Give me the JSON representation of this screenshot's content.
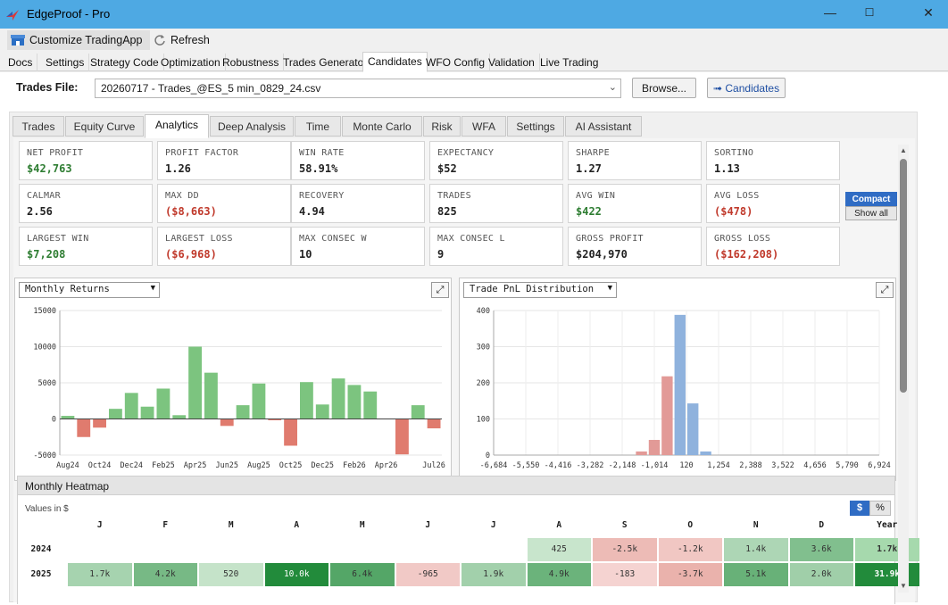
{
  "window": {
    "title": "EdgeProof - Pro"
  },
  "toolbar": {
    "customize": "Customize TradingApp",
    "refresh": "Refresh"
  },
  "menu_tabs": [
    "Docs",
    "Settings",
    "Strategy Code",
    "Optimization",
    "Robustness",
    "Trades Generator",
    "Candidates",
    "WFO Config",
    "Validation",
    "Live Trading"
  ],
  "trades_file": {
    "label": "Trades File:",
    "value": "20260717 - Trades_@ES_5 min_0829_24.csv",
    "browse": "Browse...",
    "candidates": "➟ Candidates"
  },
  "analysis_tabs": [
    "Trades",
    "Equity Curve",
    "Analytics",
    "Deep Analysis",
    "Time",
    "Monte Carlo",
    "Risk",
    "WFA",
    "Settings",
    "AI Assistant"
  ],
  "kpis": [
    {
      "label": "NET PROFIT",
      "value": "$42,763",
      "tone": "pos"
    },
    {
      "label": "PROFIT FACTOR",
      "value": "1.26",
      "tone": ""
    },
    {
      "label": "WIN RATE",
      "value": "58.91%",
      "tone": ""
    },
    {
      "label": "EXPECTANCY",
      "value": "$52",
      "tone": ""
    },
    {
      "label": "SHARPE",
      "value": "1.27",
      "tone": ""
    },
    {
      "label": "SORTINO",
      "value": "1.13",
      "tone": ""
    },
    {
      "label": "CALMAR",
      "value": "2.56",
      "tone": ""
    },
    {
      "label": "MAX DD",
      "value": "($8,663)",
      "tone": "neg"
    },
    {
      "label": "RECOVERY",
      "value": "4.94",
      "tone": ""
    },
    {
      "label": "TRADES",
      "value": "825",
      "tone": ""
    },
    {
      "label": "AVG WIN",
      "value": "$422",
      "tone": "pos"
    },
    {
      "label": "AVG LOSS",
      "value": "($478)",
      "tone": "neg"
    },
    {
      "label": "LARGEST WIN",
      "value": "$7,208",
      "tone": "pos"
    },
    {
      "label": "LARGEST LOSS",
      "value": "($6,968)",
      "tone": "neg"
    },
    {
      "label": "MAX CONSEC W",
      "value": "10",
      "tone": ""
    },
    {
      "label": "MAX CONSEC L",
      "value": "9",
      "tone": ""
    },
    {
      "label": "GROSS PROFIT",
      "value": "$204,970",
      "tone": ""
    },
    {
      "label": "GROSS LOSS",
      "value": "($162,208)",
      "tone": "neg"
    }
  ],
  "view_toggle": {
    "compact": "Compact",
    "show_all": "Show all"
  },
  "colors": {
    "pos": "#7cc47f",
    "neg": "#e07b6e",
    "blue": "#8fb2dd",
    "pink": "#e29a97",
    "accent": "#2f6cc4"
  },
  "chart_data": [
    {
      "type": "bar",
      "selector": "Monthly Returns",
      "ylim": [
        -5000,
        15000
      ],
      "yticks": [
        -5000,
        0,
        5000,
        10000,
        15000
      ],
      "categories": [
        "Aug24",
        "Sep24",
        "Oct24",
        "Nov24",
        "Dec24",
        "Jan25",
        "Feb25",
        "Mar25",
        "Apr25",
        "May25",
        "Jun25",
        "Jul25",
        "Aug25",
        "Sep25",
        "Oct25",
        "Nov25",
        "Dec25",
        "Jan26",
        "Feb26",
        "Mar26",
        "Apr26",
        "May26",
        "Jun26",
        "Jul26"
      ],
      "xlabels": [
        "Aug24",
        "Oct24",
        "Dec24",
        "Feb25",
        "Apr25",
        "Jun25",
        "Aug25",
        "Oct25",
        "Dec25",
        "Feb26",
        "Apr26",
        "Jul26"
      ],
      "values": [
        425,
        -2500,
        -1200,
        1400,
        3600,
        1700,
        4200,
        520,
        10000,
        6400,
        -965,
        1900,
        4900,
        -183,
        -3700,
        5100,
        2000,
        5600,
        4700,
        3800,
        0,
        -4900,
        1900,
        -1300
      ]
    },
    {
      "type": "bar",
      "selector": "Trade PnL Distribution",
      "ylim": [
        0,
        400
      ],
      "yticks": [
        0,
        100,
        200,
        300,
        400
      ],
      "xlabels": [
        "-6,684",
        "-5,550",
        "-4,416",
        "-3,282",
        "-2,148",
        "-1,014",
        "120",
        "1,254",
        "2,388",
        "3,522",
        "4,656",
        "5,790",
        "6,924"
      ],
      "bins": [
        {
          "center": -1468,
          "count": 10,
          "side": "neg"
        },
        {
          "center": -1014,
          "count": 42,
          "side": "neg"
        },
        {
          "center": -561,
          "count": 218,
          "side": "neg"
        },
        {
          "center": -107,
          "count": 388,
          "side": "pos"
        },
        {
          "center": 347,
          "count": 143,
          "side": "pos"
        },
        {
          "center": 800,
          "count": 10,
          "side": "pos"
        }
      ]
    }
  ],
  "heatmap": {
    "title": "Monthly Heatmap",
    "note": "Values in $",
    "unit_dollar": "$",
    "unit_pct": "%",
    "columns": [
      "J",
      "F",
      "M",
      "A",
      "M",
      "J",
      "J",
      "A",
      "S",
      "O",
      "N",
      "D",
      "Year"
    ],
    "rows": [
      {
        "year": "2024",
        "cells": [
          "",
          "",
          "",
          "",
          "",
          "",
          "",
          "425",
          "-2.5k",
          "-1.2k",
          "1.4k",
          "3.6k",
          "1.7k"
        ],
        "values": [
          null,
          null,
          null,
          null,
          null,
          null,
          null,
          425,
          -2500,
          -1200,
          1400,
          3600,
          1700
        ]
      },
      {
        "year": "2025",
        "cells": [
          "1.7k",
          "4.2k",
          "520",
          "10.0k",
          "6.4k",
          "-965",
          "1.9k",
          "4.9k",
          "-183",
          "-3.7k",
          "5.1k",
          "2.0k",
          "31.9k"
        ],
        "values": [
          1700,
          4200,
          520,
          10000,
          6400,
          -965,
          1900,
          4900,
          -183,
          -3700,
          5100,
          2000,
          31900
        ]
      }
    ]
  }
}
